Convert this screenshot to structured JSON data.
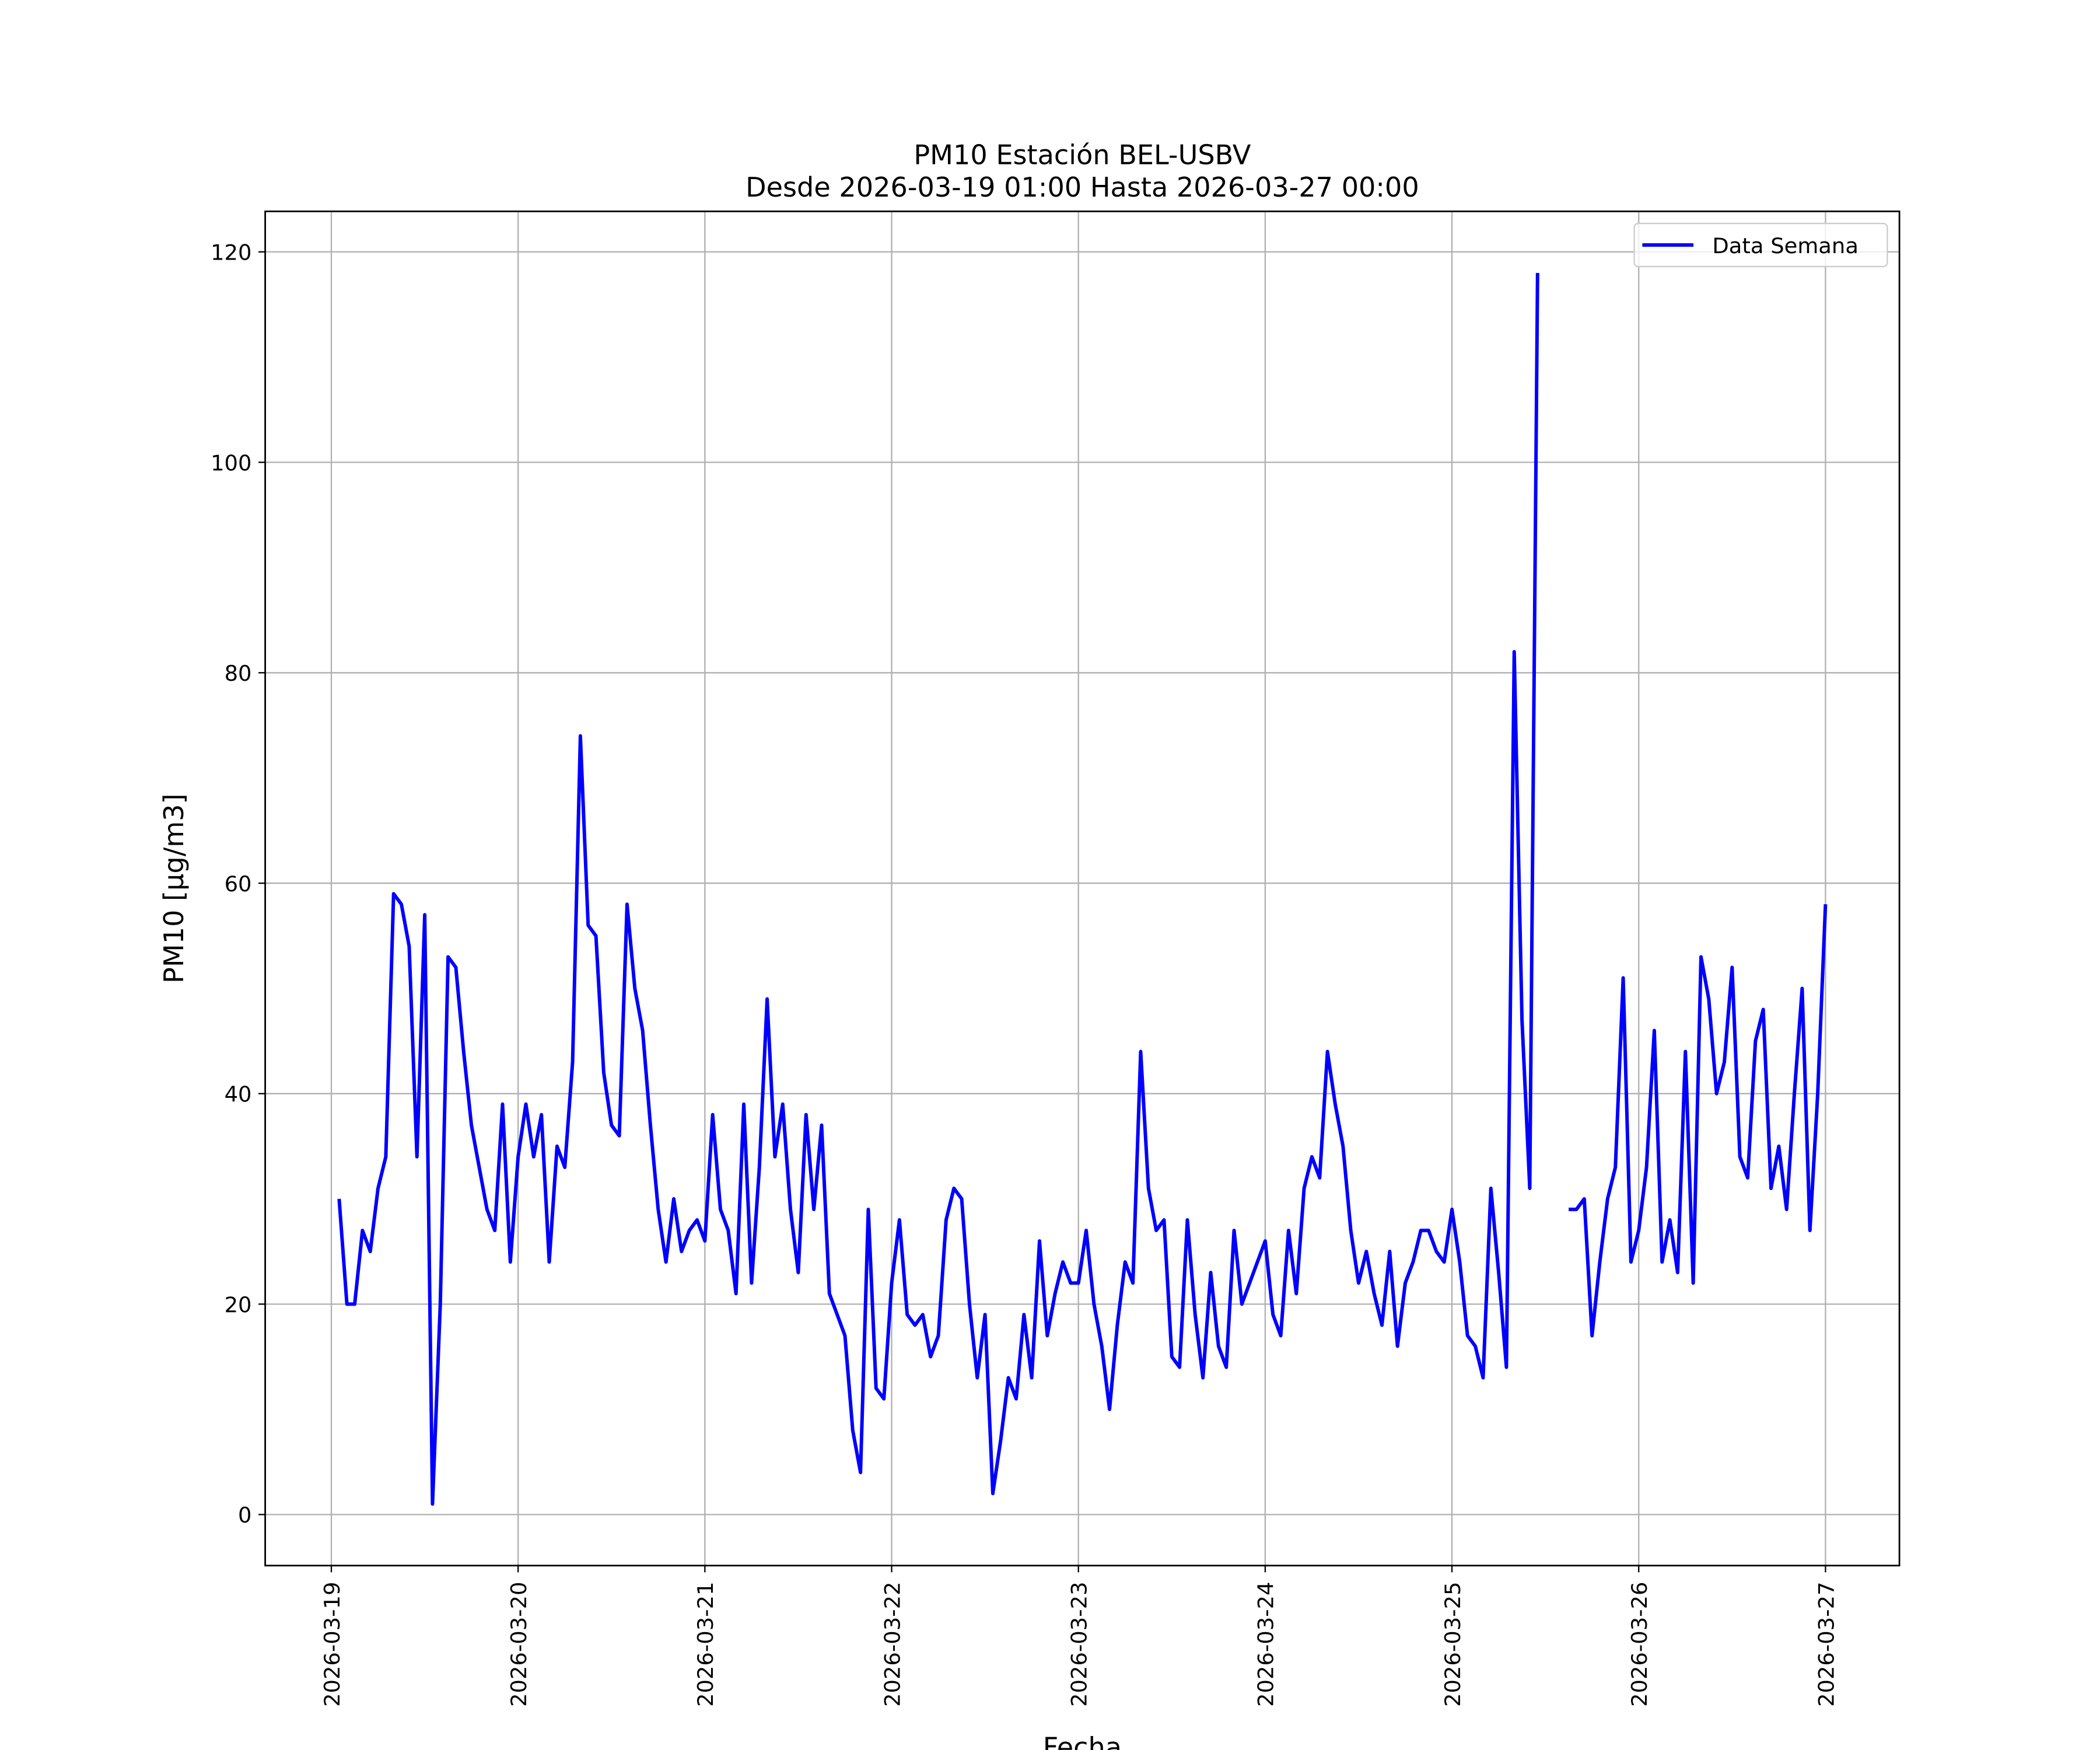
{
  "chart_data": {
    "type": "line",
    "title": "PM10 Estación BEL-USBV",
    "subtitle": "Desde 2026-03-19 01:00 Hasta 2026-03-27 00:00",
    "xlabel": "Fecha",
    "ylabel": "PM10 [μg/m3]",
    "xlim": [
      "2026-03-18 15:30",
      "2026-03-27 09:30"
    ],
    "xticks": [
      "2026-03-19",
      "2026-03-20",
      "2026-03-21",
      "2026-03-22",
      "2026-03-23",
      "2026-03-24",
      "2026-03-25",
      "2026-03-26",
      "2026-03-27"
    ],
    "ylim": [
      -4.85,
      123.85
    ],
    "yticks": [
      0,
      20,
      40,
      60,
      80,
      100,
      120
    ],
    "grid": true,
    "legend": "upper right",
    "x": [
      "2026-03-19 01:00",
      "2026-03-19 02:00",
      "2026-03-19 03:00",
      "2026-03-19 04:00",
      "2026-03-19 05:00",
      "2026-03-19 06:00",
      "2026-03-19 07:00",
      "2026-03-19 08:00",
      "2026-03-19 09:00",
      "2026-03-19 10:00",
      "2026-03-19 11:00",
      "2026-03-19 12:00",
      "2026-03-19 13:00",
      "2026-03-19 14:00",
      "2026-03-19 15:00",
      "2026-03-19 16:00",
      "2026-03-19 17:00",
      "2026-03-19 18:00",
      "2026-03-19 19:00",
      "2026-03-19 20:00",
      "2026-03-19 21:00",
      "2026-03-19 22:00",
      "2026-03-19 23:00",
      "2026-03-20 00:00",
      "2026-03-20 01:00",
      "2026-03-20 02:00",
      "2026-03-20 03:00",
      "2026-03-20 04:00",
      "2026-03-20 05:00",
      "2026-03-20 06:00",
      "2026-03-20 07:00",
      "2026-03-20 08:00",
      "2026-03-20 09:00",
      "2026-03-20 10:00",
      "2026-03-20 11:00",
      "2026-03-20 12:00",
      "2026-03-20 13:00",
      "2026-03-20 14:00",
      "2026-03-20 15:00",
      "2026-03-20 16:00",
      "2026-03-20 17:00",
      "2026-03-20 18:00",
      "2026-03-20 19:00",
      "2026-03-20 20:00",
      "2026-03-20 21:00",
      "2026-03-20 22:00",
      "2026-03-20 23:00",
      "2026-03-21 00:00",
      "2026-03-21 01:00",
      "2026-03-21 02:00",
      "2026-03-21 03:00",
      "2026-03-21 04:00",
      "2026-03-21 05:00",
      "2026-03-21 06:00",
      "2026-03-21 07:00",
      "2026-03-21 08:00",
      "2026-03-21 09:00",
      "2026-03-21 10:00",
      "2026-03-21 11:00",
      "2026-03-21 12:00",
      "2026-03-21 13:00",
      "2026-03-21 14:00",
      "2026-03-21 15:00",
      "2026-03-21 16:00",
      "2026-03-21 17:00",
      "2026-03-21 18:00",
      "2026-03-21 19:00",
      "2026-03-21 20:00",
      "2026-03-21 21:00",
      "2026-03-21 22:00",
      "2026-03-21 23:00",
      "2026-03-22 00:00",
      "2026-03-22 01:00",
      "2026-03-22 02:00",
      "2026-03-22 03:00",
      "2026-03-22 04:00",
      "2026-03-22 05:00",
      "2026-03-22 06:00",
      "2026-03-22 07:00",
      "2026-03-22 08:00",
      "2026-03-22 09:00",
      "2026-03-22 10:00",
      "2026-03-22 11:00",
      "2026-03-22 12:00",
      "2026-03-22 13:00",
      "2026-03-22 14:00",
      "2026-03-22 15:00",
      "2026-03-22 16:00",
      "2026-03-22 17:00",
      "2026-03-22 18:00",
      "2026-03-22 19:00",
      "2026-03-22 20:00",
      "2026-03-22 21:00",
      "2026-03-22 22:00",
      "2026-03-22 23:00",
      "2026-03-23 00:00",
      "2026-03-23 01:00",
      "2026-03-23 02:00",
      "2026-03-23 03:00",
      "2026-03-23 04:00",
      "2026-03-23 05:00",
      "2026-03-23 06:00",
      "2026-03-23 07:00",
      "2026-03-23 08:00",
      "2026-03-23 09:00",
      "2026-03-23 10:00",
      "2026-03-23 11:00",
      "2026-03-23 12:00",
      "2026-03-23 13:00",
      "2026-03-23 14:00",
      "2026-03-23 15:00",
      "2026-03-23 16:00",
      "2026-03-23 17:00",
      "2026-03-23 18:00",
      "2026-03-23 19:00",
      "2026-03-23 20:00",
      "2026-03-23 21:00",
      "2026-03-23 22:00",
      "2026-03-23 23:00",
      "2026-03-24 00:00",
      "2026-03-24 01:00",
      "2026-03-24 02:00",
      "2026-03-24 03:00",
      "2026-03-24 04:00",
      "2026-03-24 05:00",
      "2026-03-24 06:00",
      "2026-03-24 07:00",
      "2026-03-24 08:00",
      "2026-03-24 09:00",
      "2026-03-24 10:00",
      "2026-03-24 11:00",
      "2026-03-24 12:00",
      "2026-03-24 13:00",
      "2026-03-24 14:00",
      "2026-03-24 15:00",
      "2026-03-24 16:00",
      "2026-03-24 17:00",
      "2026-03-24 18:00",
      "2026-03-24 19:00",
      "2026-03-24 20:00",
      "2026-03-24 21:00",
      "2026-03-24 22:00",
      "2026-03-24 23:00",
      "2026-03-25 00:00",
      "2026-03-25 01:00",
      "2026-03-25 02:00",
      "2026-03-25 03:00",
      "2026-03-25 04:00",
      "2026-03-25 05:00",
      "2026-03-25 06:00",
      "2026-03-25 07:00",
      "2026-03-25 08:00",
      "2026-03-25 09:00",
      "2026-03-25 10:00",
      "2026-03-25 11:00",
      "2026-03-25 12:00",
      "2026-03-25 13:00",
      "2026-03-25 14:00",
      "2026-03-25 15:00",
      "2026-03-25 16:00",
      "2026-03-25 17:00",
      "2026-03-25 18:00",
      "2026-03-25 19:00",
      "2026-03-25 20:00",
      "2026-03-25 21:00",
      "2026-03-25 22:00",
      "2026-03-25 23:00",
      "2026-03-26 00:00",
      "2026-03-26 01:00",
      "2026-03-26 02:00",
      "2026-03-26 03:00",
      "2026-03-26 04:00",
      "2026-03-26 05:00",
      "2026-03-26 06:00",
      "2026-03-26 07:00",
      "2026-03-26 08:00",
      "2026-03-26 09:00",
      "2026-03-26 10:00",
      "2026-03-26 11:00",
      "2026-03-26 12:00",
      "2026-03-26 13:00",
      "2026-03-26 14:00",
      "2026-03-26 15:00",
      "2026-03-26 16:00",
      "2026-03-26 17:00",
      "2026-03-26 18:00",
      "2026-03-26 19:00",
      "2026-03-26 20:00",
      "2026-03-26 21:00",
      "2026-03-26 22:00",
      "2026-03-26 23:00",
      "2026-03-27 00:00"
    ],
    "series": [
      {
        "name": "Data Semana",
        "color": "#0000ff",
        "values": [
          30,
          20,
          20,
          27,
          25,
          31,
          34,
          59,
          58,
          54,
          34,
          57,
          1,
          20,
          53,
          52,
          44,
          37,
          33,
          29,
          27,
          39,
          24,
          34,
          39,
          34,
          38,
          24,
          35,
          33,
          43,
          74,
          56,
          55,
          42,
          37,
          36,
          58,
          50,
          46,
          37,
          29,
          24,
          30,
          25,
          27,
          28,
          26,
          38,
          29,
          27,
          21,
          39,
          22,
          33,
          49,
          34,
          39,
          29,
          23,
          38,
          29,
          37,
          21,
          19,
          17,
          8,
          4,
          29,
          12,
          11,
          22,
          28,
          19,
          18,
          19,
          15,
          17,
          28,
          31,
          30,
          20,
          13,
          19,
          2,
          7,
          13,
          11,
          19,
          13,
          26,
          17,
          21,
          24,
          22,
          22,
          27,
          20,
          16,
          10,
          18,
          24,
          22,
          44,
          31,
          27,
          28,
          15,
          14,
          28,
          19,
          13,
          23,
          16,
          14,
          27,
          20,
          22,
          24,
          26,
          19,
          17,
          27,
          21,
          31,
          34,
          32,
          44,
          39,
          35,
          27,
          22,
          25,
          21,
          18,
          25,
          16,
          22,
          24,
          27,
          27,
          25,
          24,
          29,
          24,
          17,
          16,
          13,
          31,
          23,
          14,
          82,
          47,
          31,
          118,
          null,
          null,
          null,
          29,
          29,
          30,
          17,
          24,
          30,
          33,
          51,
          24,
          27,
          33,
          46,
          24,
          28,
          23,
          44,
          22,
          53,
          49,
          40,
          43,
          52,
          34,
          32,
          45,
          48,
          31,
          35,
          29,
          40,
          50,
          27,
          40,
          58
        ]
      }
    ]
  }
}
